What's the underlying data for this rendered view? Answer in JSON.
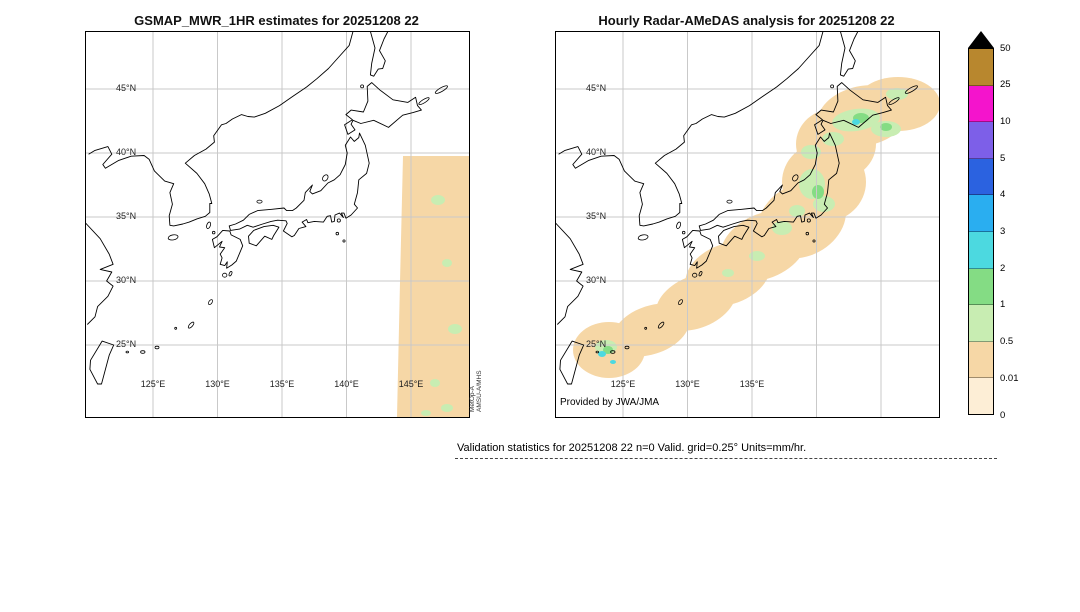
{
  "figure": {
    "background": "#ffffff"
  },
  "panels": {
    "left": {
      "title": "GSMAP_MWR_1HR estimates for 20251208 22",
      "lat_ticks": [
        "45°N",
        "40°N",
        "35°N",
        "30°N",
        "25°N"
      ],
      "lon_ticks": [
        "125°E",
        "130°E",
        "135°E",
        "140°E",
        "145°E"
      ],
      "sensor_line1": "MetOp-A",
      "sensor_line2": "AMSU-A/MHS"
    },
    "right": {
      "title": "Hourly Radar-AMeDAS analysis for 20251208 22",
      "lat_ticks": [
        "45°N",
        "40°N",
        "35°N",
        "30°N",
        "25°N"
      ],
      "lon_ticks": [
        "125°E",
        "130°E",
        "135°E"
      ],
      "source_label": "Provided by JWA/JMA"
    }
  },
  "caption": {
    "text": "Validation statistics for 20251208 22  n=0 Valid. grid=0.25° Units=mm/hr."
  },
  "colorbar": {
    "tick_labels_top_to_bottom": [
      "50",
      "25",
      "10",
      "5",
      "4",
      "3",
      "2",
      "1",
      "0.5",
      "0.01",
      "0"
    ],
    "segment_colors_bottom_to_top": [
      "#fdeed6",
      "#f6d7a6",
      "#c8edb2",
      "#84dc84",
      "#4cd9e0",
      "#2aaef0",
      "#2b62e0",
      "#7d5fe8",
      "#f414cc",
      "#b8872e"
    ],
    "overflow_marker_color": "#000000"
  },
  "chart_data": [
    {
      "type": "heatmap",
      "title": "GSMAP_MWR_1HR estimates for 20251208 22",
      "units": "mm/hr",
      "x_ticks": [
        "125°E",
        "130°E",
        "135°E",
        "140°E",
        "145°E"
      ],
      "y_ticks": [
        "45°N",
        "40°N",
        "35°N",
        "30°N",
        "25°N"
      ],
      "levels": [
        0,
        0.01,
        0.5,
        1,
        2,
        3,
        4,
        5,
        10,
        25,
        50
      ],
      "legend_position": "right",
      "grid": true,
      "coverage": "Narrow satellite swath along ~144-149E from ~40N to the southern map edge, mostly 0.01-0.5 mm/hr with isolated 0.5-1 mm/hr patches",
      "annotation": "MetOp-A AMSU-A/MHS"
    },
    {
      "type": "heatmap",
      "title": "Hourly Radar-AMeDAS analysis for 20251208 22",
      "units": "mm/hr",
      "x_ticks": [
        "125°E",
        "130°E",
        "135°E"
      ],
      "y_ticks": [
        "45°N",
        "40°N",
        "35°N",
        "30°N",
        "25°N"
      ],
      "levels": [
        0,
        0.01,
        0.5,
        1,
        2,
        3,
        4,
        5,
        10,
        25,
        50
      ],
      "legend_position": "right",
      "grid": true,
      "coverage": "Broad 0.01-0.5 mm/hr band along the Japanese archipelago from Okinawa to Hokkaido, with embedded 0.5-2 mm/hr cells over Tohoku, Hokkaido and near Okinawa",
      "annotation": "Provided by JWA/JMA"
    }
  ]
}
